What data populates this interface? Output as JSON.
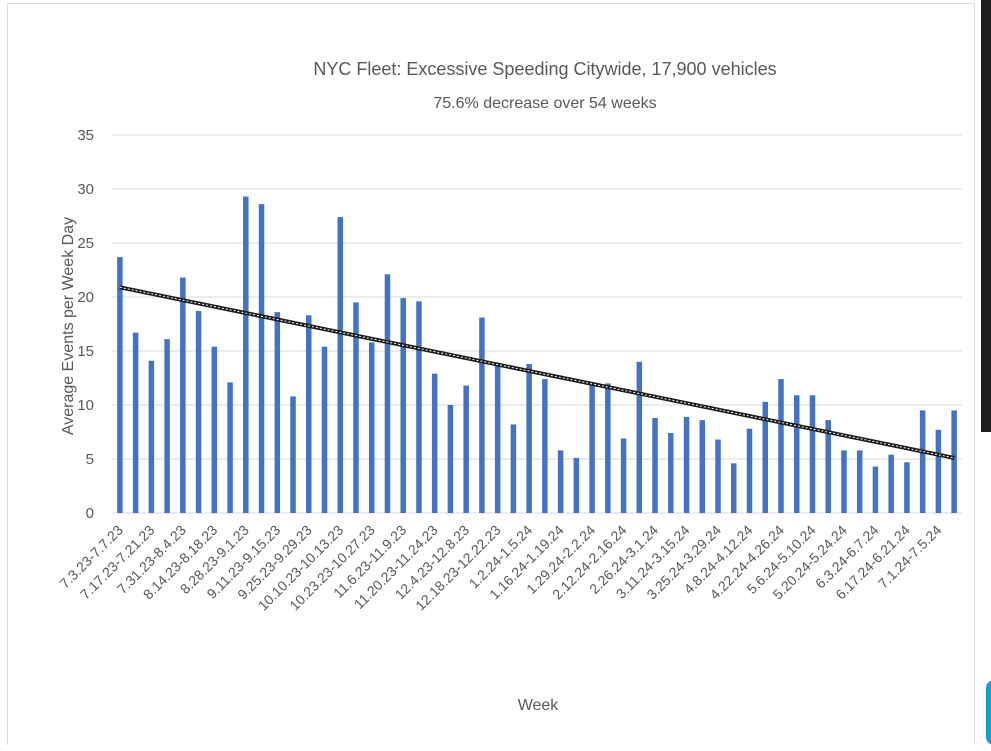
{
  "chart_data": {
    "type": "bar",
    "title": "NYC Fleet: Excessive Speeding Citywide, 17,900 vehicles",
    "subtitle": "75.6% decrease over 54 weeks",
    "xlabel": "Week",
    "ylabel": "Average Events per Week Day",
    "ylim": [
      0,
      35
    ],
    "yticks": [
      0,
      5,
      10,
      15,
      20,
      25,
      30,
      35
    ],
    "grid": true,
    "bar_color": "#4472c4",
    "trendline": {
      "type": "linear",
      "start": 20.9,
      "end": 5.1,
      "color": "#1a1a1a"
    },
    "xtick_labels": [
      "7.3.23-7.7.23",
      "7.17.23-7.21.23",
      "7.31.23-8.4.23",
      "8.14.23-8.18.23",
      "8.28.23-9.1.23",
      "9.11.23-9.15.23",
      "9.25.23-9.29.23",
      "10.10.23-10.13.23",
      "10.23.23-10.27.23",
      "11.6.23-11.9.23",
      "11.20.23-11.24.23",
      "12.4.23-12.8.23",
      "12.18.23-12.22.23",
      "1.2.24-1.5.24",
      "1.16.24-1.19.24",
      "1.29.24-2.2.24",
      "2.12.24-2.16.24",
      "2.26.24-3.1.24",
      "3.11.24-3.15.24",
      "3.25.24-3.29.24",
      "4.8.24-4.12.24",
      "4.22.24-4.26.24",
      "5.6.24-5.10.24",
      "5.20.24-5.24.24",
      "6.3.24-6.7.24",
      "6.17.24-6.21.24",
      "7.1.24-7.5.24"
    ],
    "values": [
      23.7,
      16.7,
      14.1,
      16.1,
      21.8,
      18.7,
      15.4,
      12.1,
      29.3,
      28.6,
      18.6,
      10.8,
      18.3,
      15.4,
      27.4,
      19.5,
      15.8,
      22.1,
      19.9,
      19.6,
      12.9,
      10.0,
      11.8,
      18.1,
      13.7,
      8.2,
      13.8,
      12.4,
      5.8,
      5.1,
      12.0,
      12.0,
      6.9,
      14.0,
      8.8,
      7.4,
      8.9,
      8.6,
      6.8,
      4.6,
      7.8,
      10.3,
      12.4,
      10.9,
      10.9,
      8.6,
      5.8,
      5.8,
      4.3,
      5.4,
      4.7,
      9.5,
      7.7,
      9.5
    ]
  }
}
